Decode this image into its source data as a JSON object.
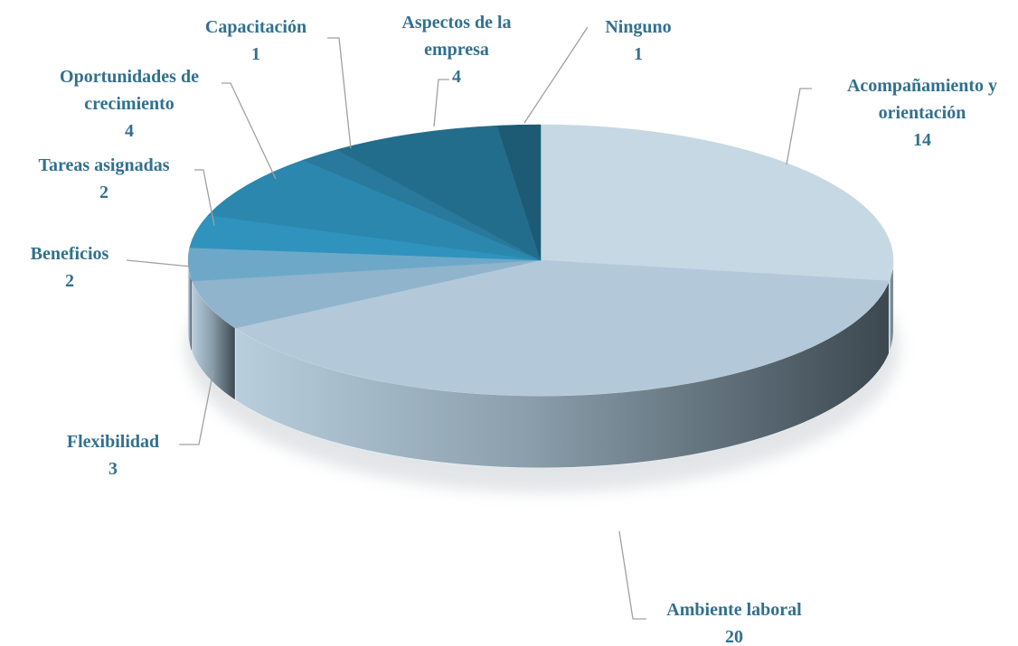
{
  "chart_data": {
    "type": "pie",
    "categories": [
      "Acompañamiento y orientación",
      "Ambiente laboral",
      "Flexibilidad",
      "Beneficios",
      "Tareas asignadas",
      "Oportunidades de crecimiento",
      "Capacitación",
      "Aspectos de la empresa",
      "Ninguno"
    ],
    "values": [
      14,
      20,
      3,
      2,
      2,
      4,
      1,
      4,
      1
    ],
    "colors": [
      "#c5d8e3",
      "#b3c9d9",
      "#8fb4cc",
      "#6ea8c9",
      "#2f93bd",
      "#2b87ae",
      "#28799c",
      "#236d8c",
      "#1d5a74"
    ],
    "label_color": "#31708f"
  }
}
